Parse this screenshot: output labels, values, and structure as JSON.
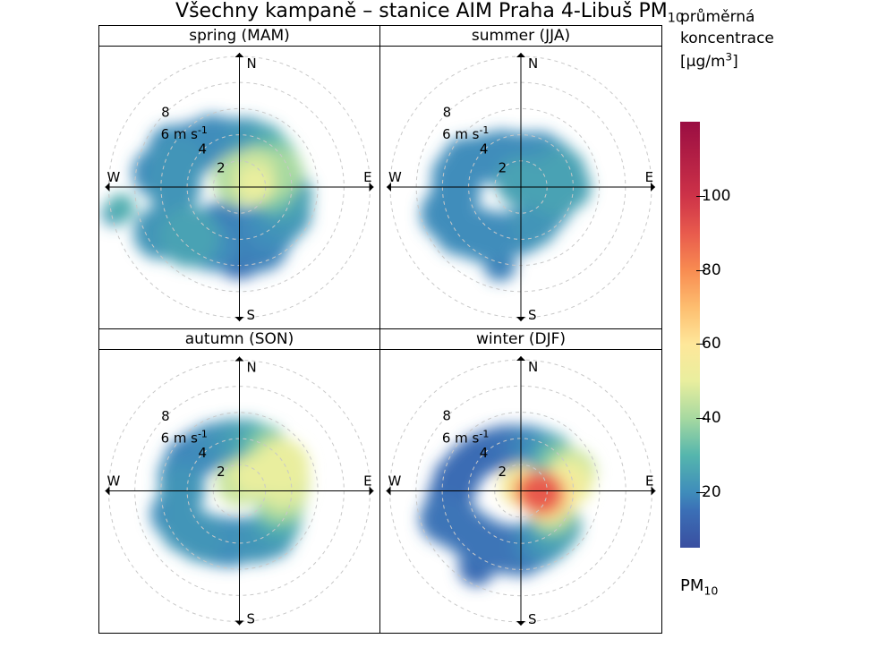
{
  "title_main": "Všechny kampaně – stanice AIM Praha 4-Libuš PM",
  "title_sub": "10",
  "legend_title_line1": "průměrná",
  "legend_title_line2": "koncentrace",
  "legend_unit_raw": "[μg/m",
  "legend_unit_sup": "3",
  "legend_unit_close": "]",
  "pollutant_main": "PM",
  "pollutant_sub": "10",
  "panels": [
    {
      "label": "spring (MAM)"
    },
    {
      "label": "summer (JJA)"
    },
    {
      "label": "autumn (SON)"
    },
    {
      "label": "winter (DJF)"
    }
  ],
  "compass": {
    "N": "N",
    "E": "E",
    "S": "S",
    "W": "W"
  },
  "wind_axis": {
    "ring_radii_ms": [
      2,
      4,
      6,
      8,
      10
    ],
    "ring_labels": [
      "2",
      "4",
      null,
      "8",
      null
    ],
    "unit_label_radius": 3,
    "unit_label": "6 m s",
    "unit_label_sup": "-1",
    "max_ms": 10
  },
  "colourscale": {
    "min": 5,
    "max": 120,
    "stops": [
      {
        "v": 5,
        "c": "#3a4fa0"
      },
      {
        "v": 15,
        "c": "#3b6fb6"
      },
      {
        "v": 20,
        "c": "#3f8dbb"
      },
      {
        "v": 30,
        "c": "#55b6ad"
      },
      {
        "v": 40,
        "c": "#a7d9a0"
      },
      {
        "v": 50,
        "c": "#e9ee9e"
      },
      {
        "v": 60,
        "c": "#fee79a"
      },
      {
        "v": 70,
        "c": "#fdbd6f"
      },
      {
        "v": 80,
        "c": "#f88b51"
      },
      {
        "v": 90,
        "c": "#e85a4d"
      },
      {
        "v": 100,
        "c": "#cd3248"
      },
      {
        "v": 120,
        "c": "#9a0d42"
      }
    ],
    "ticks": [
      20,
      40,
      60,
      80,
      100
    ]
  },
  "style": {
    "background": "#ffffff",
    "grid_colour": "#c8c8c8",
    "grid_dash": "4 4",
    "axis_colour": "#000000",
    "panel_border": "#000000",
    "label_fontsize_pt": 13,
    "title_fontsize_pt": 17
  },
  "blobs": {
    "spring": [
      {
        "dir": 260,
        "spd": 9.2,
        "rad": 16,
        "val": 28
      },
      {
        "dir": 258,
        "spd": 9.8,
        "rad": 14,
        "val": 22
      },
      {
        "dir": 240,
        "spd": 7.0,
        "rad": 30,
        "val": 22
      },
      {
        "dir": 225,
        "spd": 5.4,
        "rad": 34,
        "val": 25
      },
      {
        "dir": 205,
        "spd": 5.0,
        "rad": 28,
        "val": 20
      },
      {
        "dir": 200,
        "spd": 3.8,
        "rad": 36,
        "val": 18
      },
      {
        "dir": 180,
        "spd": 5.0,
        "rad": 30,
        "val": 15
      },
      {
        "dir": 160,
        "spd": 4.6,
        "rad": 32,
        "val": 18
      },
      {
        "dir": 140,
        "spd": 3.8,
        "rad": 32,
        "val": 20
      },
      {
        "dir": 120,
        "spd": 4.0,
        "rad": 30,
        "val": 22
      },
      {
        "dir": 100,
        "spd": 3.6,
        "rad": 30,
        "val": 25
      },
      {
        "dir": 90,
        "spd": 2.4,
        "rad": 28,
        "val": 35
      },
      {
        "dir": 70,
        "spd": 3.2,
        "rad": 28,
        "val": 40
      },
      {
        "dir": 50,
        "spd": 3.4,
        "rad": 26,
        "val": 32
      },
      {
        "dir": 30,
        "spd": 3.6,
        "rad": 26,
        "val": 25
      },
      {
        "dir": 10,
        "spd": 3.6,
        "rad": 26,
        "val": 22
      },
      {
        "dir": 350,
        "spd": 3.6,
        "rad": 26,
        "val": 20
      },
      {
        "dir": 330,
        "spd": 4.2,
        "rad": 28,
        "val": 20
      },
      {
        "dir": 310,
        "spd": 4.6,
        "rad": 30,
        "val": 18
      },
      {
        "dir": 300,
        "spd": 6.0,
        "rad": 26,
        "val": 20
      },
      {
        "dir": 290,
        "spd": 5.0,
        "rad": 30,
        "val": 22
      },
      {
        "dir": 280,
        "spd": 6.4,
        "rad": 28,
        "val": 20
      },
      {
        "dir": 270,
        "spd": 5.0,
        "rad": 30,
        "val": 22
      },
      {
        "dir": 0,
        "spd": 0.6,
        "rad": 30,
        "val": 42
      },
      {
        "dir": 40,
        "spd": 1.8,
        "rad": 24,
        "val": 45
      },
      {
        "dir": 80,
        "spd": 1.2,
        "rad": 22,
        "val": 50
      }
    ],
    "summer": [
      {
        "dir": 250,
        "spd": 6.0,
        "rad": 30,
        "val": 20
      },
      {
        "dir": 235,
        "spd": 5.6,
        "rad": 30,
        "val": 20
      },
      {
        "dir": 220,
        "spd": 4.8,
        "rad": 30,
        "val": 20
      },
      {
        "dir": 205,
        "spd": 4.2,
        "rad": 28,
        "val": 20
      },
      {
        "dir": 195,
        "spd": 6.2,
        "rad": 18,
        "val": 18
      },
      {
        "dir": 180,
        "spd": 3.4,
        "rad": 26,
        "val": 20
      },
      {
        "dir": 160,
        "spd": 3.0,
        "rad": 26,
        "val": 22
      },
      {
        "dir": 140,
        "spd": 2.6,
        "rad": 26,
        "val": 22
      },
      {
        "dir": 120,
        "spd": 2.6,
        "rad": 26,
        "val": 22
      },
      {
        "dir": 100,
        "spd": 2.6,
        "rad": 26,
        "val": 25
      },
      {
        "dir": 90,
        "spd": 3.6,
        "rad": 26,
        "val": 25
      },
      {
        "dir": 70,
        "spd": 3.4,
        "rad": 26,
        "val": 25
      },
      {
        "dir": 50,
        "spd": 3.0,
        "rad": 26,
        "val": 22
      },
      {
        "dir": 30,
        "spd": 3.0,
        "rad": 24,
        "val": 20
      },
      {
        "dir": 10,
        "spd": 2.6,
        "rad": 24,
        "val": 20
      },
      {
        "dir": 350,
        "spd": 2.6,
        "rad": 24,
        "val": 20
      },
      {
        "dir": 330,
        "spd": 3.0,
        "rad": 26,
        "val": 20
      },
      {
        "dir": 310,
        "spd": 3.4,
        "rad": 28,
        "val": 20
      },
      {
        "dir": 295,
        "spd": 4.6,
        "rad": 28,
        "val": 20
      },
      {
        "dir": 280,
        "spd": 5.0,
        "rad": 28,
        "val": 20
      },
      {
        "dir": 265,
        "spd": 5.0,
        "rad": 28,
        "val": 20
      },
      {
        "dir": 0,
        "spd": 0.4,
        "rad": 28,
        "val": 25
      }
    ],
    "autumn": [
      {
        "dir": 250,
        "spd": 5.2,
        "rad": 28,
        "val": 20
      },
      {
        "dir": 235,
        "spd": 5.0,
        "rad": 28,
        "val": 22
      },
      {
        "dir": 220,
        "spd": 4.6,
        "rad": 28,
        "val": 22
      },
      {
        "dir": 205,
        "spd": 4.2,
        "rad": 28,
        "val": 20
      },
      {
        "dir": 190,
        "spd": 4.0,
        "rad": 28,
        "val": 20
      },
      {
        "dir": 175,
        "spd": 3.8,
        "rad": 26,
        "val": 20
      },
      {
        "dir": 160,
        "spd": 4.0,
        "rad": 26,
        "val": 22
      },
      {
        "dir": 145,
        "spd": 4.2,
        "rad": 26,
        "val": 22
      },
      {
        "dir": 130,
        "spd": 3.8,
        "rad": 26,
        "val": 25
      },
      {
        "dir": 115,
        "spd": 3.4,
        "rad": 26,
        "val": 30
      },
      {
        "dir": 100,
        "spd": 3.2,
        "rad": 28,
        "val": 40
      },
      {
        "dir": 80,
        "spd": 3.4,
        "rad": 30,
        "val": 48
      },
      {
        "dir": 60,
        "spd": 3.8,
        "rad": 30,
        "val": 50
      },
      {
        "dir": 45,
        "spd": 3.6,
        "rad": 26,
        "val": 42
      },
      {
        "dir": 30,
        "spd": 3.8,
        "rad": 26,
        "val": 32
      },
      {
        "dir": 10,
        "spd": 3.8,
        "rad": 26,
        "val": 25
      },
      {
        "dir": 350,
        "spd": 3.8,
        "rad": 26,
        "val": 22
      },
      {
        "dir": 330,
        "spd": 4.0,
        "rad": 26,
        "val": 20
      },
      {
        "dir": 315,
        "spd": 4.2,
        "rad": 26,
        "val": 18
      },
      {
        "dir": 300,
        "spd": 4.6,
        "rad": 26,
        "val": 18
      },
      {
        "dir": 285,
        "spd": 4.6,
        "rad": 26,
        "val": 20
      },
      {
        "dir": 270,
        "spd": 4.4,
        "rad": 26,
        "val": 22
      },
      {
        "dir": 0,
        "spd": 0.6,
        "rad": 26,
        "val": 45
      },
      {
        "dir": 40,
        "spd": 1.6,
        "rad": 22,
        "val": 50
      }
    ],
    "winter": [
      {
        "dir": 250,
        "spd": 6.2,
        "rad": 28,
        "val": 16
      },
      {
        "dir": 240,
        "spd": 5.4,
        "rad": 28,
        "val": 16
      },
      {
        "dir": 225,
        "spd": 5.0,
        "rad": 28,
        "val": 16
      },
      {
        "dir": 210,
        "spd": 4.8,
        "rad": 28,
        "val": 16
      },
      {
        "dir": 210,
        "spd": 6.8,
        "rad": 20,
        "val": 14
      },
      {
        "dir": 195,
        "spd": 4.6,
        "rad": 28,
        "val": 16
      },
      {
        "dir": 180,
        "spd": 4.6,
        "rad": 28,
        "val": 16
      },
      {
        "dir": 165,
        "spd": 4.2,
        "rad": 28,
        "val": 18
      },
      {
        "dir": 150,
        "spd": 4.0,
        "rad": 28,
        "val": 22
      },
      {
        "dir": 135,
        "spd": 3.8,
        "rad": 28,
        "val": 25
      },
      {
        "dir": 125,
        "spd": 3.0,
        "rad": 26,
        "val": 35
      },
      {
        "dir": 115,
        "spd": 2.6,
        "rad": 26,
        "val": 45
      },
      {
        "dir": 105,
        "spd": 2.0,
        "rad": 26,
        "val": 65
      },
      {
        "dir": 95,
        "spd": 1.6,
        "rad": 24,
        "val": 90
      },
      {
        "dir": 88,
        "spd": 3.0,
        "rad": 26,
        "val": 55
      },
      {
        "dir": 80,
        "spd": 3.8,
        "rad": 26,
        "val": 50
      },
      {
        "dir": 70,
        "spd": 4.2,
        "rad": 26,
        "val": 45
      },
      {
        "dir": 55,
        "spd": 3.6,
        "rad": 24,
        "val": 35
      },
      {
        "dir": 40,
        "spd": 3.6,
        "rad": 24,
        "val": 25
      },
      {
        "dir": 25,
        "spd": 3.4,
        "rad": 24,
        "val": 20
      },
      {
        "dir": 10,
        "spd": 3.4,
        "rad": 24,
        "val": 18
      },
      {
        "dir": 355,
        "spd": 3.4,
        "rad": 24,
        "val": 16
      },
      {
        "dir": 340,
        "spd": 3.6,
        "rad": 24,
        "val": 15
      },
      {
        "dir": 325,
        "spd": 3.8,
        "rad": 24,
        "val": 14
      },
      {
        "dir": 310,
        "spd": 4.2,
        "rad": 24,
        "val": 14
      },
      {
        "dir": 295,
        "spd": 4.6,
        "rad": 24,
        "val": 14
      },
      {
        "dir": 280,
        "spd": 5.0,
        "rad": 26,
        "val": 14
      },
      {
        "dir": 265,
        "spd": 5.4,
        "rad": 26,
        "val": 14
      },
      {
        "dir": 0,
        "spd": 0.4,
        "rad": 24,
        "val": 55
      },
      {
        "dir": 90,
        "spd": 0.8,
        "rad": 20,
        "val": 80
      }
    ]
  }
}
